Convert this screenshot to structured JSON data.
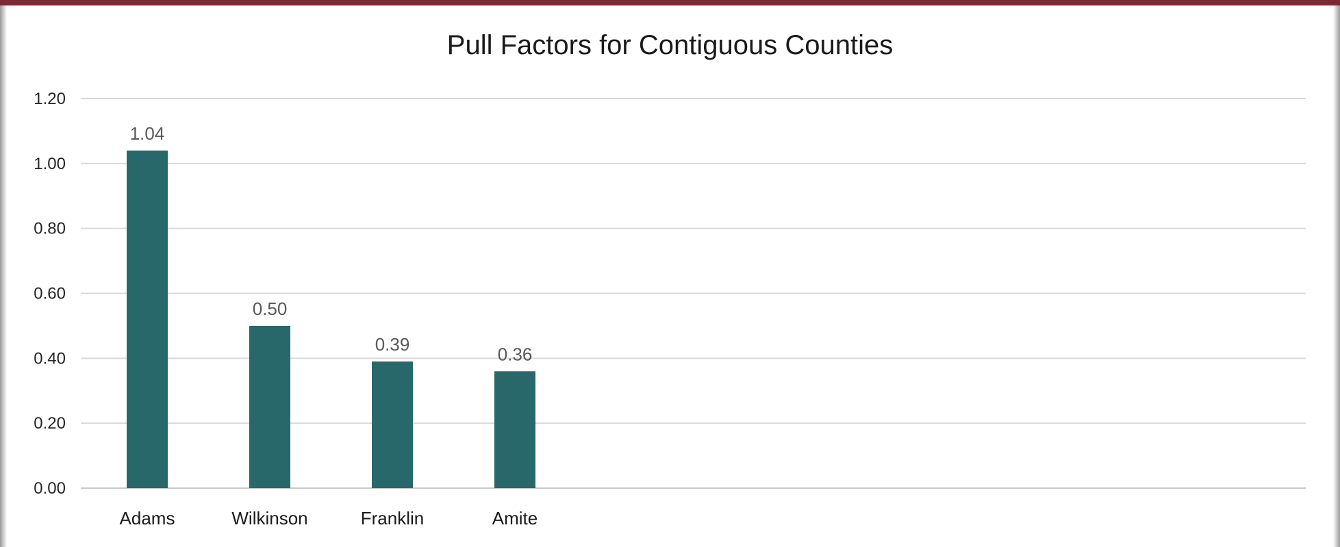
{
  "chart_data": {
    "type": "bar",
    "title": "Pull Factors for Contiguous Counties",
    "categories": [
      "Adams",
      "Wilkinson",
      "Franklin",
      "Amite"
    ],
    "values": [
      1.04,
      0.5,
      0.39,
      0.36
    ],
    "data_labels": [
      "1.04",
      "0.50",
      "0.39",
      "0.36"
    ],
    "ylim": [
      0,
      1.2
    ],
    "y_ticks": [
      "0.00",
      "0.20",
      "0.40",
      "0.60",
      "0.80",
      "1.00",
      "1.20"
    ],
    "xlabel": "",
    "ylabel": "",
    "grid": true,
    "legend": "none",
    "bar_color": "#28686b",
    "frame_accent_color": "#7b2a34"
  }
}
